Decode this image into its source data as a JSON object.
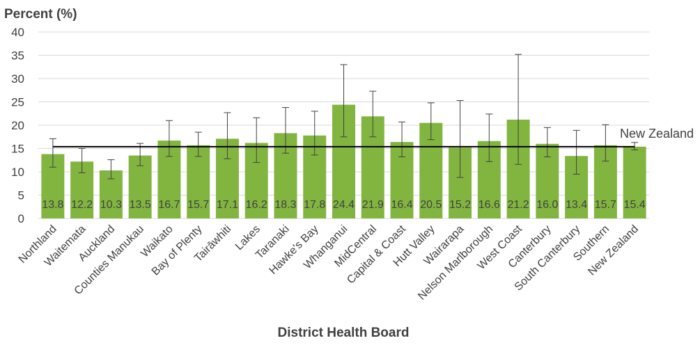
{
  "chart_data": {
    "type": "bar",
    "ylabel": "Percent (%)",
    "xlabel": "District Health Board",
    "ylim": [
      0,
      40
    ],
    "yticks": [
      0,
      5,
      10,
      15,
      20,
      25,
      30,
      35,
      40
    ],
    "grid": true,
    "bar_color": "#82b540",
    "categories": [
      "Northland",
      "Waitemata",
      "Auckland",
      "Counties Manukau",
      "Waikato",
      "Bay of Plenty",
      "Tairāwhiti",
      "Lakes",
      "Taranaki",
      "Hawke's Bay",
      "Whanganui",
      "MidCentral",
      "Capital & Coast",
      "Hutt Valley",
      "Wairarapa",
      "Nelson Marlborough",
      "West Coast",
      "Canterbury",
      "South Canterbury",
      "Southern",
      "New Zealand"
    ],
    "values": [
      13.8,
      12.2,
      10.3,
      13.5,
      16.7,
      15.7,
      17.1,
      16.2,
      18.3,
      17.8,
      24.4,
      21.9,
      16.4,
      20.5,
      15.2,
      16.6,
      21.2,
      16.0,
      13.4,
      15.7,
      15.4
    ],
    "value_labels": [
      "13.8",
      "12.2",
      "10.3",
      "13.5",
      "16.7",
      "15.7",
      "17.1",
      "16.2",
      "18.3",
      "17.8",
      "24.4",
      "21.9",
      "16.4",
      "20.5",
      "15.2",
      "16.6",
      "21.2",
      "16.0",
      "13.4",
      "15.7",
      "15.4"
    ],
    "ci_low": [
      11.0,
      9.8,
      8.5,
      11.3,
      13.3,
      13.3,
      12.8,
      12.0,
      14.0,
      13.6,
      17.5,
      17.5,
      13.2,
      16.9,
      8.8,
      12.2,
      11.6,
      13.2,
      9.5,
      12.3,
      14.7
    ],
    "ci_high": [
      17.1,
      15.0,
      12.6,
      16.1,
      21.0,
      18.5,
      22.7,
      21.6,
      23.8,
      23.0,
      33.0,
      27.3,
      20.7,
      24.8,
      25.3,
      22.4,
      35.2,
      19.5,
      18.9,
      20.1,
      16.3
    ],
    "reference_line": {
      "value": 15.4,
      "label": "New Zealand"
    }
  }
}
